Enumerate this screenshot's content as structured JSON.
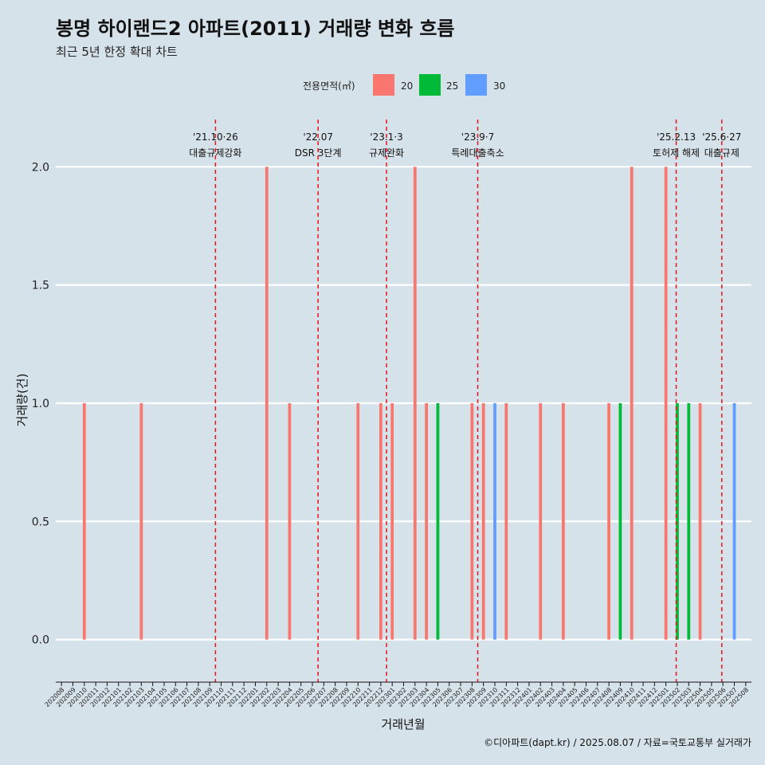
{
  "chart_data": {
    "type": "bar",
    "title": "봉명 하이랜드2 아파트(2011) 거래량 변화 흐름",
    "subtitle": "최근 5년 한정 확대 차트",
    "xlabel": "거래년월",
    "ylabel": "거래량(건)",
    "caption": "©디아파트(dapt.kr) / 2025.08.07 / 자료=국토교통부 실거래가",
    "ylim": [
      -0.18,
      2.2
    ],
    "yticks": [
      "0.0",
      "0.5",
      "1.0",
      "1.5",
      "2.0"
    ],
    "legend": {
      "title": "전용면적(㎡)",
      "position": "top",
      "items": [
        {
          "label": "20",
          "color": "#f8766d"
        },
        {
          "label": "25",
          "color": "#00ba38"
        },
        {
          "label": "30",
          "color": "#619cff"
        }
      ]
    },
    "categories": [
      "202008",
      "202009",
      "202010",
      "202011",
      "202012",
      "202101",
      "202102",
      "202103",
      "202104",
      "202105",
      "202106",
      "202107",
      "202108",
      "202109",
      "202110",
      "202111",
      "202112",
      "202201",
      "202202",
      "202203",
      "202204",
      "202205",
      "202206",
      "202207",
      "202208",
      "202209",
      "202210",
      "202211",
      "202212",
      "202301",
      "202302",
      "202303",
      "202304",
      "202305",
      "202306",
      "202307",
      "202308",
      "202309",
      "202310",
      "202311",
      "202312",
      "202401",
      "202402",
      "202403",
      "202404",
      "202405",
      "202406",
      "202407",
      "202408",
      "202409",
      "202410",
      "202411",
      "202412",
      "202501",
      "202502",
      "202503",
      "202504",
      "202505",
      "202506",
      "202507",
      "202508"
    ],
    "series": [
      {
        "name": "20",
        "color": "#f8766d",
        "values": [
          0,
          0,
          1,
          0,
          0,
          0,
          0,
          1,
          0,
          0,
          0,
          0,
          0,
          0,
          0,
          0,
          0,
          0,
          2,
          0,
          1,
          0,
          0,
          0,
          0,
          0,
          1,
          0,
          1,
          1,
          0,
          2,
          1,
          0,
          0,
          0,
          1,
          1,
          0,
          1,
          0,
          0,
          1,
          0,
          1,
          0,
          0,
          0,
          1,
          0,
          2,
          0,
          0,
          2,
          0,
          0,
          1,
          0,
          0,
          0,
          0
        ]
      },
      {
        "name": "25",
        "color": "#00ba38",
        "values": [
          0,
          0,
          0,
          0,
          0,
          0,
          0,
          0,
          0,
          0,
          0,
          0,
          0,
          0,
          0,
          0,
          0,
          0,
          0,
          0,
          0,
          0,
          0,
          0,
          0,
          0,
          0,
          0,
          0,
          0,
          0,
          0,
          0,
          1,
          0,
          0,
          0,
          0,
          0,
          0,
          0,
          0,
          0,
          0,
          0,
          0,
          0,
          0,
          0,
          1,
          0,
          0,
          0,
          0,
          1,
          1,
          0,
          0,
          0,
          0,
          0
        ]
      },
      {
        "name": "30",
        "color": "#619cff",
        "values": [
          0,
          0,
          0,
          0,
          0,
          0,
          0,
          0,
          0,
          0,
          0,
          0,
          0,
          0,
          0,
          0,
          0,
          0,
          0,
          0,
          0,
          0,
          0,
          0,
          0,
          0,
          0,
          0,
          0,
          0,
          0,
          0,
          0,
          0,
          0,
          0,
          0,
          0,
          1,
          0,
          0,
          0,
          0,
          0,
          0,
          0,
          0,
          0,
          0,
          0,
          0,
          0,
          0,
          0,
          0,
          0,
          0,
          0,
          0,
          1,
          0
        ]
      }
    ],
    "annotations": [
      {
        "x": 14.0,
        "date": "'21.10·26",
        "text": "대출규제강화"
      },
      {
        "x": 23.0,
        "date": "'22.07",
        "text": "DSR 3단계"
      },
      {
        "x": 29.0,
        "date": "'23.1·3",
        "text": "규제완화"
      },
      {
        "x": 37.0,
        "date": "'23.9·7",
        "text": "특례대출축소"
      },
      {
        "x": 54.4,
        "date": "'25.2.13",
        "text": "토허제 해제"
      },
      {
        "x": 58.4,
        "date": "'25.6·27",
        "text": "대출규제"
      }
    ]
  }
}
